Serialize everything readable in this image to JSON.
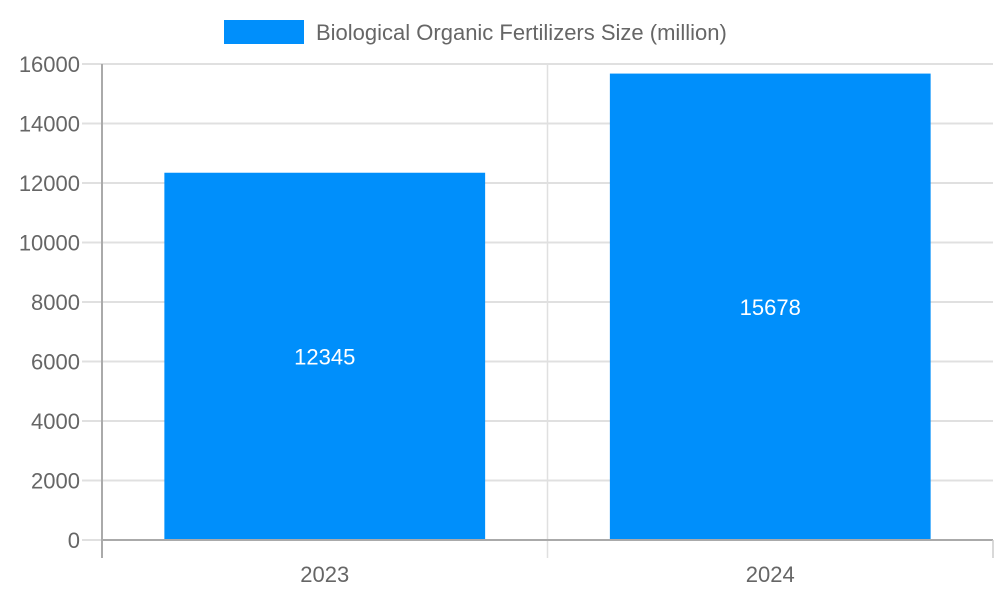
{
  "chart_data": {
    "type": "bar",
    "title": "",
    "xlabel": "",
    "ylabel": "",
    "categories": [
      "2023",
      "2024"
    ],
    "series": [
      {
        "name": "Biological Organic Fertilizers Size (million)",
        "values": [
          12345,
          15678
        ],
        "color": "#008FFB"
      }
    ],
    "data_labels": [
      "12345",
      "15678"
    ],
    "ylim": [
      0,
      16000
    ],
    "yticks": [
      "0",
      "2000",
      "4000",
      "6000",
      "8000",
      "10000",
      "12000",
      "14000",
      "16000"
    ],
    "grid": true,
    "legend_position": "top"
  }
}
